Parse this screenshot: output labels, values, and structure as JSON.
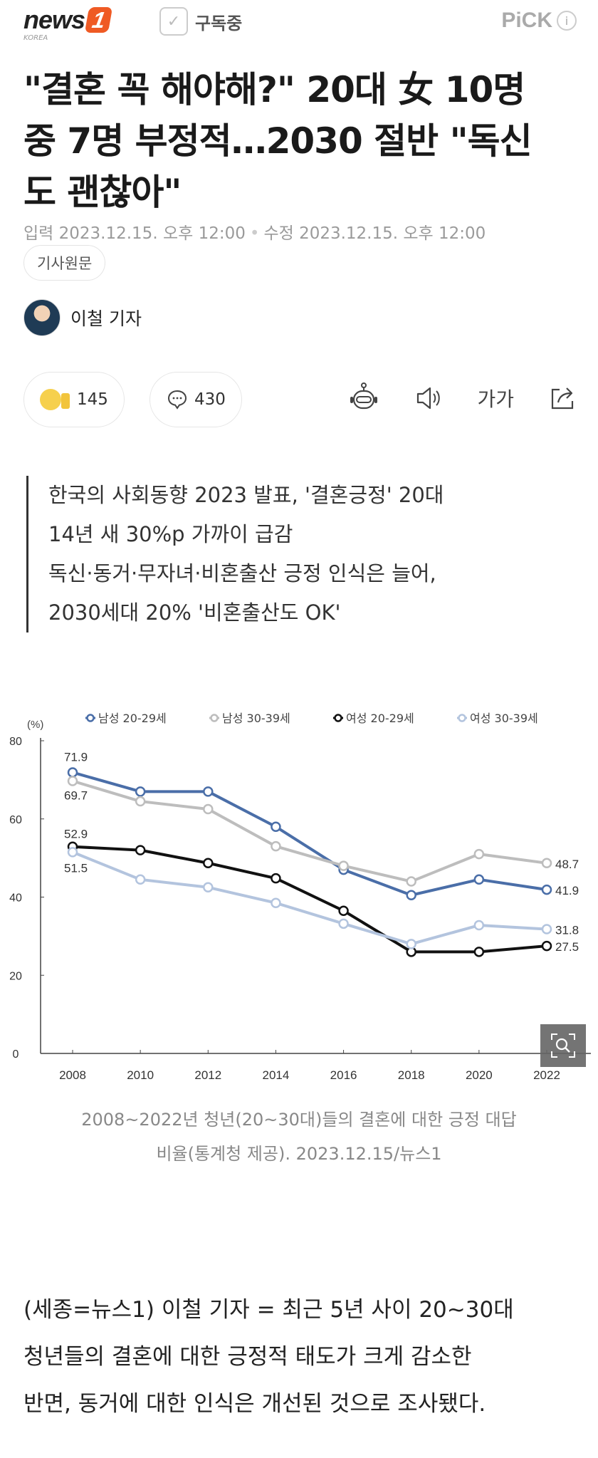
{
  "header": {
    "logo_text": "news",
    "logo_number": "1",
    "logo_sub": "KOREA",
    "subscribe_label": "구독중",
    "pick_label": "PiCK",
    "info_icon": "i"
  },
  "article": {
    "title_lines": [
      "\"결혼 꼭 해야해?\" 20대 女 10명",
      "중 7명 부정적…2030 절반 \"독신",
      "도 괜찮아\""
    ],
    "input_date": "입력 2023.12.15. 오후 12:00",
    "modified_date": "수정 2023.12.15. 오후 12:00",
    "original_button": "기사원문",
    "author": "이철 기자",
    "reactions": {
      "like_count": "145",
      "comment_count": "430"
    },
    "tools": {
      "font_size_label": "가가"
    },
    "summary_lines": [
      "한국의 사회동향 2023 발표, '결혼긍정' 20대",
      "14년 새 30%p 가까이 급감",
      "독신·동거·무자녀·비혼출산 긍정 인식은 늘어,",
      "2030세대 20% '비혼출산도 OK'"
    ],
    "caption_lines": [
      "2008~2022년 청년(20~30대)들의 결혼에 대한 긍정 대답",
      "비율(통계청 제공). 2023.12.15/뉴스1"
    ],
    "body_lines": [
      "(세종=뉴스1) 이철 기자 = 최근 5년 사이 20~30대",
      "청년들의 결혼에 대한 긍정적 태도가 크게 감소한",
      "반면, 동거에 대한 인식은 개선된 것으로 조사됐다."
    ]
  },
  "chart_data": {
    "type": "line",
    "ylabel": "(%)",
    "ylim": [
      0,
      80
    ],
    "yticks": [
      "0",
      "20",
      "40",
      "60",
      "80"
    ],
    "categories": [
      "2008",
      "2010",
      "2012",
      "2014",
      "2016",
      "2018",
      "2020",
      "2022"
    ],
    "legend_position": "top",
    "grid": false,
    "series": [
      {
        "name": "남성 20-29세",
        "color": "#4a6ea8",
        "values": [
          71.9,
          67.0,
          67.0,
          58.0,
          47.0,
          40.5,
          44.5,
          41.9
        ]
      },
      {
        "name": "남성 30-39세",
        "color": "#bdbdbd",
        "values": [
          69.7,
          64.5,
          62.5,
          53.0,
          48.0,
          44.0,
          51.0,
          48.7
        ]
      },
      {
        "name": "여성 20-29세",
        "color": "#111111",
        "values": [
          52.9,
          52.0,
          48.7,
          44.8,
          36.5,
          26.0,
          26.0,
          27.5
        ]
      },
      {
        "name": "여성 30-39세",
        "color": "#b3c4de",
        "values": [
          51.5,
          44.5,
          42.5,
          38.5,
          33.2,
          28.0,
          32.8,
          31.8
        ]
      }
    ],
    "data_labels": [
      {
        "series": 0,
        "index": 0,
        "text": "71.9"
      },
      {
        "series": 1,
        "index": 0,
        "text": "69.7"
      },
      {
        "series": 2,
        "index": 0,
        "text": "52.9"
      },
      {
        "series": 3,
        "index": 0,
        "text": "51.5"
      },
      {
        "series": 1,
        "index": 7,
        "text": "48.7"
      },
      {
        "series": 0,
        "index": 7,
        "text": "41.9"
      },
      {
        "series": 3,
        "index": 7,
        "text": "31.8"
      },
      {
        "series": 2,
        "index": 7,
        "text": "27.5"
      }
    ]
  }
}
